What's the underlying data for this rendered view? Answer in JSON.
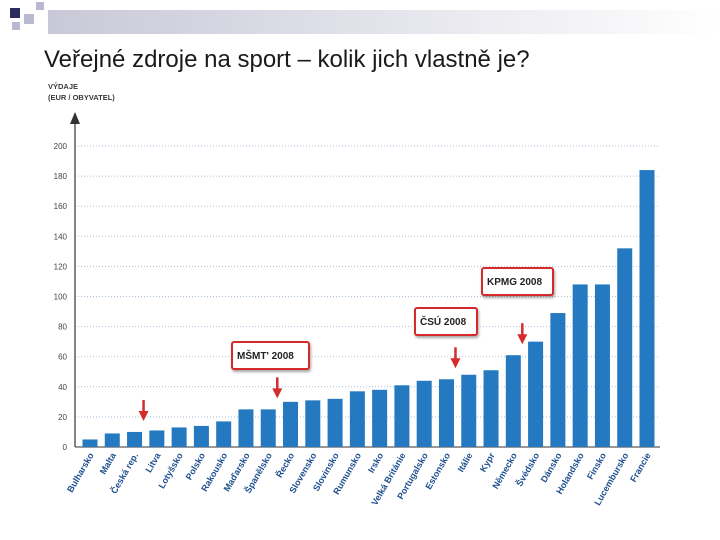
{
  "slide": {
    "title": "Veřejné zdroje na sport – kolik jich vlastně je?"
  },
  "colors": {
    "bar": "#2479c1",
    "annotation": "#d42b2b",
    "grid": "#a9c3dd",
    "deco_dark": "#2b2b5c",
    "deco_light": "#b9b9cf"
  },
  "chart_data": {
    "type": "bar",
    "title": "",
    "ylabel_lines": [
      "VÝDAJE",
      "(EUR / OBYVATEL)"
    ],
    "xlabel": "",
    "ylim": [
      0,
      200
    ],
    "yticks": [
      0,
      20,
      40,
      60,
      80,
      100,
      120,
      140,
      160,
      180,
      200
    ],
    "grid": true,
    "categories": [
      "Bulharsko",
      "Malta",
      "Česká rep.",
      "Litva",
      "Lotyšsko",
      "Polsko",
      "Rakousko",
      "Maďarsko",
      "Španělsko",
      "Řecko",
      "Slovensko",
      "Slovinsko",
      "Rumunsko",
      "Irsko",
      "Velká Británie",
      "Portugalsko",
      "Estonsko",
      "Itálie",
      "Kypr",
      "Německo",
      "Švédsko",
      "Dánsko",
      "Holandsko",
      "Finsko",
      "Lucembursko",
      "Francie"
    ],
    "values": [
      5,
      9,
      10,
      11,
      13,
      14,
      17,
      25,
      25,
      30,
      31,
      32,
      37,
      38,
      41,
      44,
      45,
      48,
      51,
      61,
      70,
      89,
      108,
      108,
      132,
      184
    ],
    "annotations": [
      {
        "label": "MŠMT' 2008",
        "arrow_at": "Španělsko"
      },
      {
        "label": "ČSÚ 2008",
        "arrow_at": "Estonsko"
      },
      {
        "label": "KPMG 2008",
        "arrow_at": "Německo"
      }
    ],
    "markers": [
      {
        "type": "arrow",
        "at": "Česká rep."
      }
    ]
  }
}
